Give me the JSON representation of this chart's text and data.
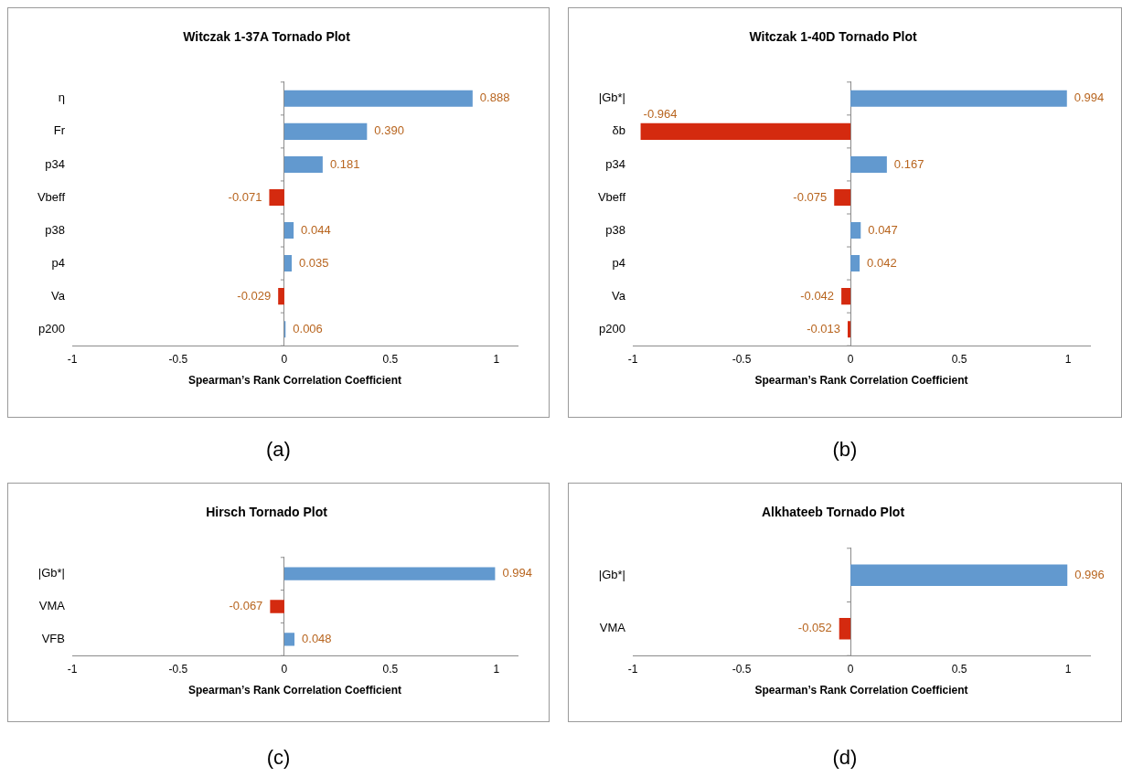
{
  "chart_data": [
    {
      "type": "bar",
      "orientation": "horizontal",
      "title": "Witczak 1-37A Tornado Plot",
      "xlabel": "Spearman’s Rank Correlation Coefficient",
      "categories": [
        "η",
        "Fr",
        "p34",
        "Vbeff",
        "p38",
        "p4",
        "Va",
        "p200"
      ],
      "values": [
        0.888,
        0.39,
        0.181,
        -0.071,
        0.044,
        0.035,
        -0.029,
        0.006
      ],
      "value_labels": [
        "0.888",
        "0.390",
        "0.181",
        "-0.071",
        "0.044",
        "0.035",
        "-0.029",
        "0.006"
      ],
      "colors": [
        "#6299cf",
        "#6299cf",
        "#6299cf",
        "#d42a0f",
        "#6299cf",
        "#6299cf",
        "#d42a0f",
        "#6299cf"
      ],
      "xlim": [
        -1,
        1.1
      ],
      "xticks": [
        -1,
        -0.5,
        0,
        0.5,
        1
      ],
      "legend": false,
      "annotations": [
        "(a)"
      ]
    },
    {
      "type": "bar",
      "orientation": "horizontal",
      "title": "Witczak 1-40D Tornado Plot",
      "xlabel": "Spearman’s Rank Correlation Coefficient",
      "categories": [
        "|Gb*|",
        "δb",
        "p34",
        "Vbeff",
        "p38",
        "p4",
        "Va",
        "p200"
      ],
      "values": [
        0.994,
        -0.964,
        0.167,
        -0.075,
        0.047,
        0.042,
        -0.042,
        -0.013
      ],
      "value_labels": [
        "0.994",
        "-0.964",
        "0.167",
        "-0.075",
        "0.047",
        "0.042",
        "-0.042",
        "-0.013"
      ],
      "colors": [
        "#6299cf",
        "#d42a0f",
        "#6299cf",
        "#d42a0f",
        "#6299cf",
        "#6299cf",
        "#d42a0f",
        "#d42a0f"
      ],
      "xlim": [
        -1,
        1.1
      ],
      "xticks": [
        -1,
        -0.5,
        0,
        0.5,
        1
      ],
      "legend": false,
      "annotations": [
        "(b)"
      ]
    },
    {
      "type": "bar",
      "orientation": "horizontal",
      "title": "Hirsch Tornado Plot",
      "xlabel": "Spearman’s Rank Correlation Coefficient",
      "categories": [
        "|Gb*|",
        "VMA",
        "VFB"
      ],
      "values": [
        0.994,
        -0.067,
        0.048
      ],
      "value_labels": [
        "0.994",
        "-0.067",
        "0.048"
      ],
      "colors": [
        "#6299cf",
        "#d42a0f",
        "#6299cf"
      ],
      "xlim": [
        -1,
        1.1
      ],
      "xticks": [
        -1,
        -0.5,
        0,
        0.5,
        1
      ],
      "legend": false,
      "annotations": [
        "(c)"
      ]
    },
    {
      "type": "bar",
      "orientation": "horizontal",
      "title": "Alkhateeb Tornado Plot",
      "xlabel": "Spearman’s Rank Correlation Coefficient",
      "categories": [
        "|Gb*|",
        "VMA"
      ],
      "values": [
        0.996,
        -0.052
      ],
      "value_labels": [
        "0.996",
        "-0.052"
      ],
      "colors": [
        "#6299cf",
        "#d42a0f"
      ],
      "xlim": [
        -1,
        1.1
      ],
      "xticks": [
        -1,
        -0.5,
        0,
        0.5,
        1
      ],
      "legend": false,
      "annotations": [
        "(d)"
      ]
    }
  ]
}
